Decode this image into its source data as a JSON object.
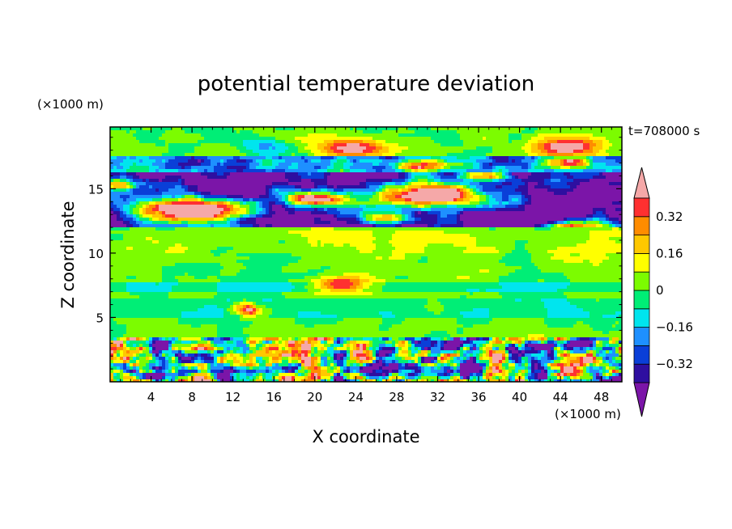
{
  "chart_data": {
    "type": "heatmap",
    "title": "potential temperature deviation",
    "time_label": "t=708000 s",
    "xlabel": "X coordinate",
    "ylabel": "Z coordinate",
    "x_unit": "(×1000 m)",
    "y_unit": "(×1000 m)",
    "xlim": [
      0,
      50
    ],
    "ylim": [
      0,
      19.8
    ],
    "x_ticks": [
      4,
      8,
      12,
      16,
      20,
      24,
      28,
      32,
      36,
      40,
      44,
      48
    ],
    "y_ticks": [
      5,
      10,
      15
    ],
    "x_tick_labels": [
      "4",
      "8",
      "12",
      "16",
      "20",
      "24",
      "28",
      "32",
      "36",
      "40",
      "44",
      "48"
    ],
    "y_tick_labels": [
      "5",
      "10",
      "15"
    ],
    "colorbar": {
      "levels": [
        -0.4,
        -0.32,
        -0.24,
        -0.16,
        -0.08,
        0,
        0.08,
        0.16,
        0.24,
        0.32,
        0.4
      ],
      "colors": [
        "#7b15a8",
        "#2e0fa0",
        "#0a3fd8",
        "#1e90ff",
        "#00e5ee",
        "#00ee76",
        "#7cfc00",
        "#ffff00",
        "#ffc800",
        "#ff8c00",
        "#ff3030",
        "#f5a8a8"
      ],
      "tick_values": [
        -0.32,
        -0.16,
        0,
        0.16,
        0.32
      ],
      "tick_labels": [
        "−0.32",
        "−0.16",
        "0",
        "0.16",
        "0.32"
      ]
    }
  }
}
